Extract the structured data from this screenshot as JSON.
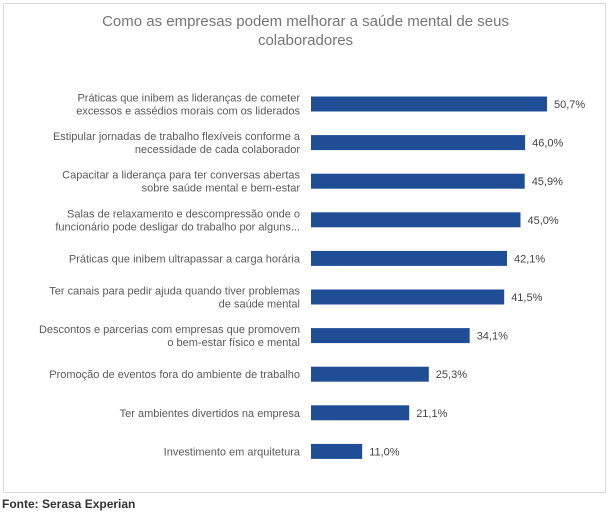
{
  "title_line1": "Como as empresas podem melhorar a saúde mental de seus",
  "title_line2": "colaboradores",
  "source": "Fonte: Serasa Experian",
  "bar_color": "#1f4e96",
  "chart_data": {
    "type": "bar",
    "orientation": "horizontal",
    "title": "Como as empresas podem melhorar a saúde mental de seus colaboradores",
    "categories": [
      [
        "Práticas que inibem as lideranças de cometer",
        "excessos e assédios morais com os liderados"
      ],
      [
        "Estipular jornadas de trabalho flexíveis conforme a",
        "necessidade de cada colaborador"
      ],
      [
        "Capacitar a liderança para ter conversas abertas",
        "sobre saúde mental e bem-estar"
      ],
      [
        "Salas de relaxamento e descompressão onde o",
        "funcionário pode desligar do trabalho por alguns..."
      ],
      [
        "Práticas que inibem ultrapassar a carga horária"
      ],
      [
        "Ter canais para pedir ajuda quando tiver problemas",
        "de saúde mental"
      ],
      [
        "Descontos e parcerias com empresas que promovem",
        "o bem-estar físico e mental"
      ],
      [
        "Promoção de eventos fora do ambiente de trabalho"
      ],
      [
        "Ter ambientes divertidos na empresa"
      ],
      [
        "Investimento em arquitetura"
      ]
    ],
    "values": [
      50.7,
      46.0,
      45.9,
      45.0,
      42.1,
      41.5,
      34.1,
      25.3,
      21.1,
      11.0
    ],
    "value_labels": [
      "50,7%",
      "46,0%",
      "45,9%",
      "45,0%",
      "42,1%",
      "41,5%",
      "34,1%",
      "25,3%",
      "21,1%",
      "11,0%"
    ],
    "xlabel": "",
    "ylabel": "",
    "xlim": [
      0,
      50.7
    ],
    "grid": false,
    "legend": false
  }
}
